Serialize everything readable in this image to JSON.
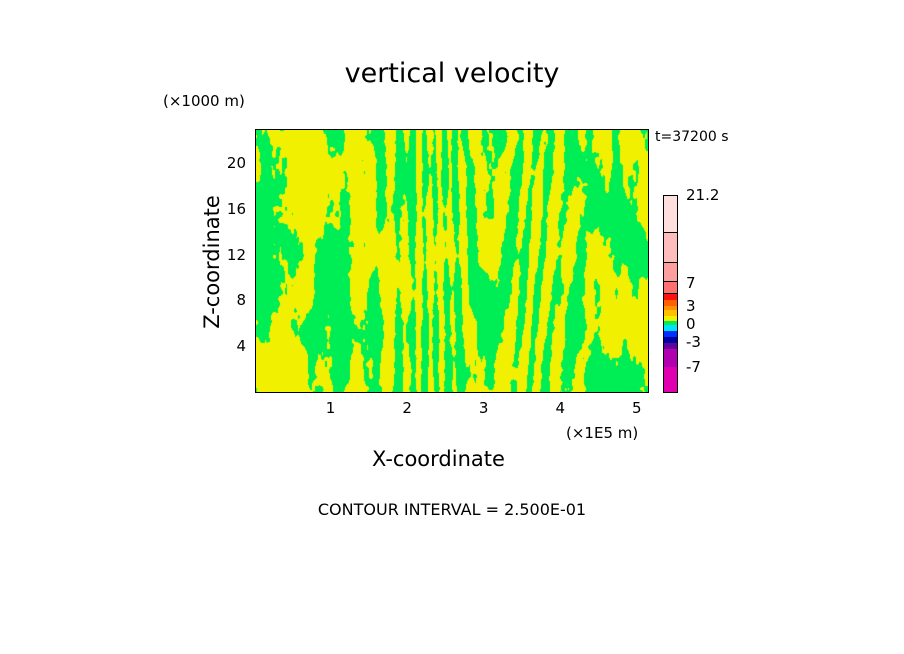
{
  "chart_data": {
    "type": "heatmap",
    "title": "vertical velocity",
    "xlabel": "X-coordinate",
    "ylabel": "Z-coordinate",
    "x_unit": "(×1E5 m)",
    "y_unit": "(×1000 m)",
    "time_label": "t=37200 s",
    "contour_interval": "CONTOUR INTERVAL = 2.500E-01",
    "xlim": [
      0,
      5.12
    ],
    "ylim": [
      0,
      22.9
    ],
    "x_ticks": [
      1,
      2,
      3,
      4,
      5
    ],
    "y_ticks": [
      4,
      8,
      12,
      16,
      20
    ],
    "colorbar": {
      "labels": [
        {
          "value": 21.2,
          "text": "21.2"
        },
        {
          "value": 7,
          "text": "7"
        },
        {
          "value": 3,
          "text": "3"
        },
        {
          "value": 0,
          "text": "0"
        },
        {
          "value": -3,
          "text": "-3"
        },
        {
          "value": -7,
          "text": "-7"
        }
      ],
      "colors_top_to_bottom": [
        "#ffdede",
        "#ffbcbc",
        "#ff9e9e",
        "#ff7070",
        "#ff1010",
        "#ff6000",
        "#ff9000",
        "#ffc000",
        "#f0f000",
        "#00ee55",
        "#00e0ff",
        "#0030ff",
        "#0000a0",
        "#6000a0",
        "#b000b0",
        "#e000b0"
      ],
      "segment_bounds_frac": [
        0,
        0.19,
        0.34,
        0.44,
        0.5,
        0.53,
        0.56,
        0.58,
        0.61,
        0.64,
        0.66,
        0.69,
        0.72,
        0.75,
        0.78,
        0.87,
        1
      ]
    },
    "field_description_levels": {
      "positive_color": "#f0f000",
      "negative_color": "#00ee55"
    }
  }
}
